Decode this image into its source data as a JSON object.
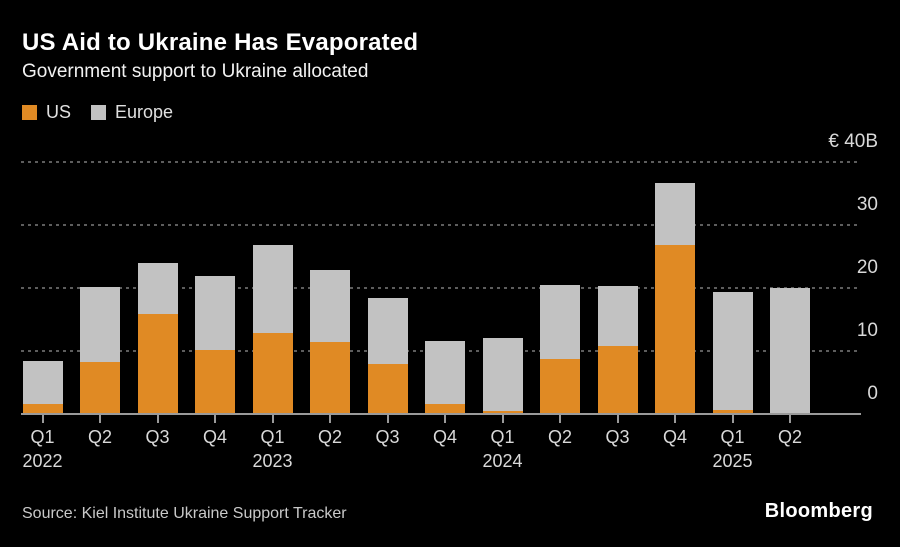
{
  "header": {
    "title": "US Aid to Ukraine Has Evaporated",
    "subtitle": "Government support to Ukraine allocated"
  },
  "legend": [
    {
      "label": "US",
      "color": "#E08A24"
    },
    {
      "label": "Europe",
      "color": "#C2C2C2"
    }
  ],
  "colors": {
    "background": "#000000",
    "us": "#E08A24",
    "europe": "#C2C2C2",
    "grid": "#5d5d5d",
    "axis": "#9a9a9a",
    "title_text": "#ffffff",
    "label_text": "#d9d9d9"
  },
  "chart_data": {
    "type": "bar",
    "stacked": true,
    "unit": "EUR billions",
    "title": "US Aid to Ukraine Has Evaporated",
    "subtitle": "Government support to Ukraine allocated",
    "categories": [
      "Q1 2022",
      "Q2 2022",
      "Q3 2022",
      "Q4 2022",
      "Q1 2023",
      "Q2 2023",
      "Q3 2023",
      "Q4 2023",
      "Q1 2024",
      "Q2 2024",
      "Q3 2024",
      "Q4 2024",
      "Q1 2025",
      "Q2 2025"
    ],
    "x_tick_labels": [
      "Q1",
      "Q2",
      "Q3",
      "Q4",
      "Q1",
      "Q2",
      "Q3",
      "Q4",
      "Q1",
      "Q2",
      "Q3",
      "Q4",
      "Q1",
      "Q2"
    ],
    "year_labels": [
      {
        "text": "2022",
        "bar_index": 0
      },
      {
        "text": "2023",
        "bar_index": 4
      },
      {
        "text": "2024",
        "bar_index": 8
      },
      {
        "text": "2025",
        "bar_index": 12
      }
    ],
    "series": [
      {
        "name": "US",
        "color": "#E08A24",
        "values": [
          1.4,
          8.1,
          15.7,
          10.0,
          12.7,
          11.3,
          7.8,
          1.4,
          0.3,
          8.6,
          10.6,
          26.6,
          0.5,
          0.0
        ]
      },
      {
        "name": "Europe",
        "color": "#C2C2C2",
        "values": [
          6.8,
          11.9,
          8.1,
          11.7,
          13.9,
          11.4,
          10.5,
          10.0,
          11.6,
          11.7,
          9.6,
          9.9,
          18.7,
          19.9
        ]
      }
    ],
    "ylim": [
      0,
      40
    ],
    "yticks": [
      {
        "value": 40,
        "label": "€ 40B"
      },
      {
        "value": 30,
        "label": "30"
      },
      {
        "value": 20,
        "label": "20"
      },
      {
        "value": 10,
        "label": "10"
      },
      {
        "value": 0,
        "label": "0"
      }
    ],
    "grid": "horizontal-dotted",
    "legend_position": "top-left"
  },
  "footer": {
    "source": "Source: Kiel Institute Ukraine Support Tracker",
    "brand": "Bloomberg"
  }
}
